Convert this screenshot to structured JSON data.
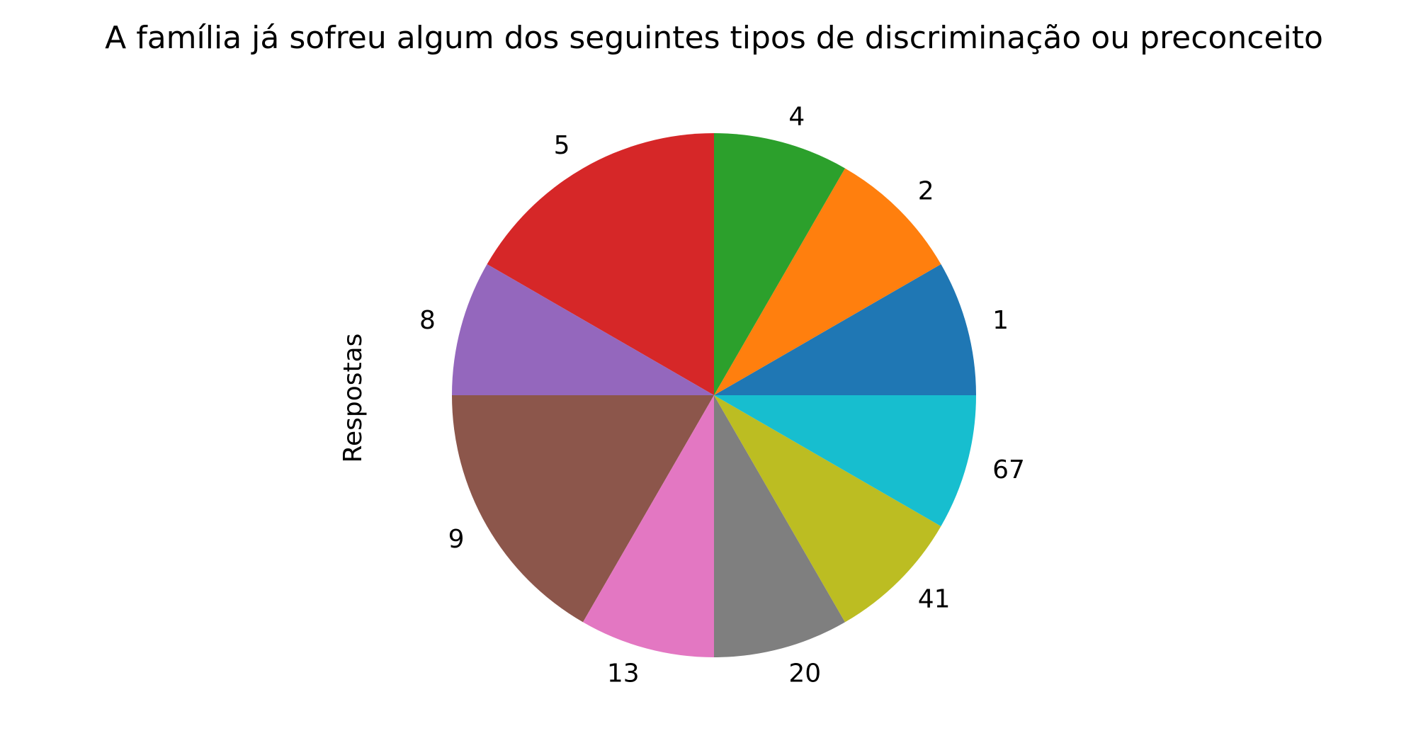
{
  "chart_data": {
    "type": "pie",
    "title": "A família já sofreu algum dos seguintes tipos de discriminação ou preconceito",
    "ylabel": "Respostas",
    "categories": [
      "1",
      "2",
      "4",
      "5",
      "8",
      "9",
      "13",
      "20",
      "41",
      "67"
    ],
    "values": [
      1,
      1,
      1,
      2,
      1,
      2,
      1,
      1,
      1,
      1
    ],
    "colors": [
      "#1f77b4",
      "#ff7f0e",
      "#2ca02c",
      "#d62728",
      "#9467bd",
      "#8c564b",
      "#e377c2",
      "#7f7f7f",
      "#bcbd22",
      "#17becf"
    ],
    "start_angle_deg": 0,
    "direction": "counterclockwise",
    "legend": "none"
  }
}
